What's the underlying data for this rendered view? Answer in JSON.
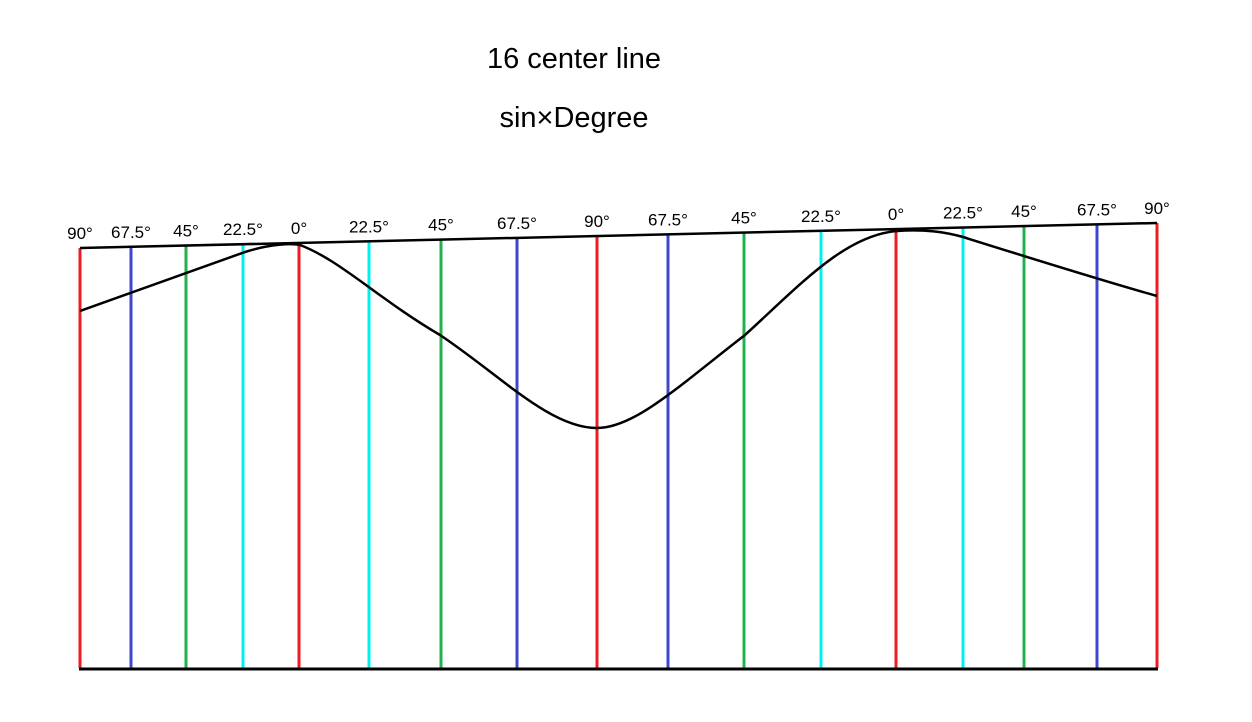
{
  "title": "16 center line",
  "subtitle": "sin×Degree",
  "colors": {
    "deg90": "#ed1c24",
    "deg67_5": "#3f48cc",
    "deg45": "#22b14c",
    "deg22_5": "#00f0f0",
    "deg0": "#ed1c24",
    "curve": "#000000",
    "baseline": "#000000"
  },
  "lines": [
    {
      "label": "90°",
      "angle": 90
    },
    {
      "label": "67.5°",
      "angle": 67.5
    },
    {
      "label": "45°",
      "angle": 45
    },
    {
      "label": "22.5°",
      "angle": 22.5
    },
    {
      "label": "0°",
      "angle": 0
    },
    {
      "label": "22.5°",
      "angle": 22.5
    },
    {
      "label": "45°",
      "angle": 45
    },
    {
      "label": "67.5°",
      "angle": 67.5
    },
    {
      "label": "90°",
      "angle": 90
    },
    {
      "label": "67.5°",
      "angle": 67.5
    },
    {
      "label": "45°",
      "angle": 45
    },
    {
      "label": "22.5°",
      "angle": 22.5
    },
    {
      "label": "0°",
      "angle": 0
    },
    {
      "label": "22.5°",
      "angle": 22.5
    },
    {
      "label": "45°",
      "angle": 45
    },
    {
      "label": "67.5°",
      "angle": 67.5
    },
    {
      "label": "90°",
      "angle": 90
    }
  ]
}
